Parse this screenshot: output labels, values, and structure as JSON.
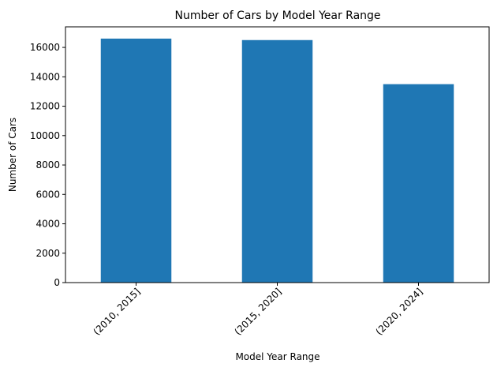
{
  "chart_data": {
    "type": "bar",
    "title": "Number of Cars by Model Year Range",
    "xlabel": "Model Year Range",
    "ylabel": "Number of Cars",
    "categories": [
      "(2010, 2015]",
      "(2015, 2020]",
      "(2020, 2024]"
    ],
    "values": [
      16600,
      16500,
      13500
    ],
    "ylim": [
      0,
      17400
    ],
    "yticks": [
      0,
      2000,
      4000,
      6000,
      8000,
      10000,
      12000,
      14000,
      16000
    ],
    "ytick_labels": [
      "0",
      "2000",
      "4000",
      "6000",
      "8000",
      "10000",
      "12000",
      "14000",
      "16000"
    ],
    "bar_color": "#1f77b4",
    "grid": false,
    "legend": "none"
  }
}
